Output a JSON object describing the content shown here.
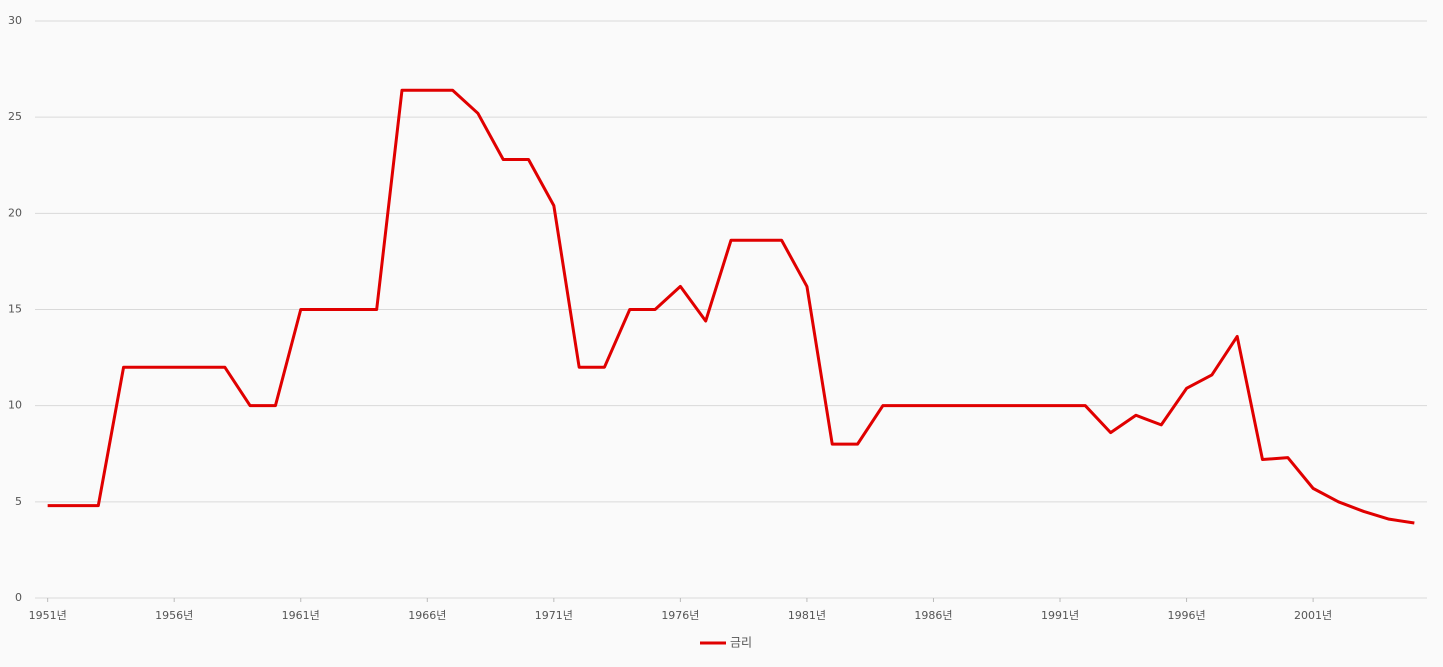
{
  "chart_data": {
    "type": "line",
    "x": [
      1951,
      1952,
      1953,
      1954,
      1955,
      1956,
      1957,
      1958,
      1959,
      1960,
      1961,
      1962,
      1963,
      1964,
      1965,
      1966,
      1967,
      1968,
      1969,
      1970,
      1971,
      1972,
      1973,
      1974,
      1975,
      1976,
      1977,
      1978,
      1979,
      1980,
      1981,
      1982,
      1983,
      1984,
      1985,
      1986,
      1987,
      1988,
      1989,
      1990,
      1991,
      1992,
      1993,
      1994,
      1995,
      1996,
      1997,
      1998,
      1999,
      2000,
      2001,
      2002,
      2003,
      2004,
      2005
    ],
    "series": [
      {
        "name": "금리",
        "color": "#e00000",
        "values": [
          4.8,
          4.8,
          4.8,
          12.0,
          12.0,
          12.0,
          12.0,
          12.0,
          10.0,
          10.0,
          15.0,
          15.0,
          15.0,
          15.0,
          26.4,
          26.4,
          26.4,
          25.2,
          22.8,
          22.8,
          20.4,
          12.0,
          12.0,
          15.0,
          15.0,
          16.2,
          14.4,
          18.6,
          18.6,
          18.6,
          16.2,
          8.0,
          8.0,
          10.0,
          10.0,
          10.0,
          10.0,
          10.0,
          10.0,
          10.0,
          10.0,
          10.0,
          8.6,
          9.5,
          9.0,
          10.9,
          11.6,
          13.6,
          7.2,
          7.3,
          5.7,
          5.0,
          4.5,
          4.1,
          3.9
        ]
      }
    ],
    "xlim": [
      1950.5,
      2005.5
    ],
    "xticks": [
      {
        "value": 1951,
        "label": "1951년"
      },
      {
        "value": 1956,
        "label": "1956년"
      },
      {
        "value": 1961,
        "label": "1961년"
      },
      {
        "value": 1966,
        "label": "1966년"
      },
      {
        "value": 1971,
        "label": "1971년"
      },
      {
        "value": 1976,
        "label": "1976년"
      },
      {
        "value": 1981,
        "label": "1981년"
      },
      {
        "value": 1986,
        "label": "1986년"
      },
      {
        "value": 1991,
        "label": "1991년"
      },
      {
        "value": 1996,
        "label": "1996년"
      },
      {
        "value": 2001,
        "label": "2001년"
      }
    ],
    "ylim": [
      0,
      30
    ],
    "yticks": [
      0,
      5,
      10,
      15,
      20,
      25,
      30
    ],
    "grid": true,
    "legend": "bottom"
  }
}
